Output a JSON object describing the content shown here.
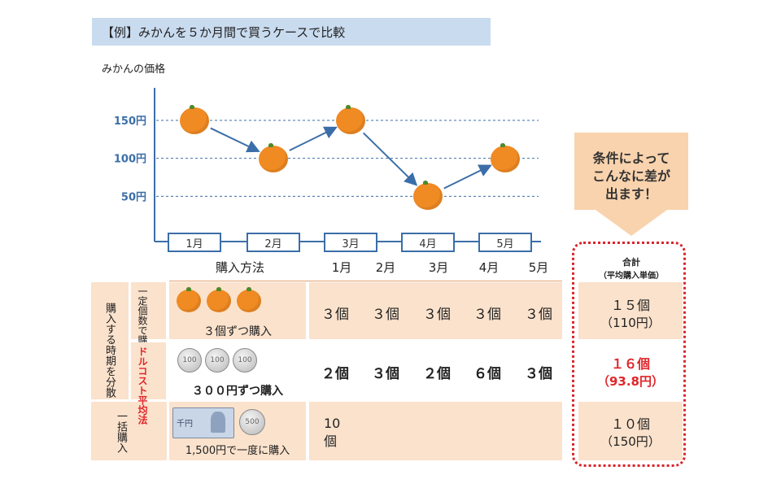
{
  "banner": {
    "title": "【例】みかんを５か月間で買うケースで比較"
  },
  "chart_data": {
    "type": "line",
    "ylabel": "みかんの価格",
    "y_ticks": [
      "150円",
      "100円",
      "50円"
    ],
    "y_tick_values": [
      150,
      100,
      50
    ],
    "categories": [
      "1月",
      "2月",
      "3月",
      "4月",
      "5月"
    ],
    "values": [
      150,
      100,
      150,
      50,
      100
    ],
    "ylim": [
      0,
      160
    ],
    "gridlines": "dashed",
    "markers": "mikan-orange"
  },
  "callout": {
    "lines": [
      "条件によって",
      "こんなに差が",
      "出ます！"
    ]
  },
  "table": {
    "header": {
      "method": "購入方法",
      "months": [
        "1月",
        "2月",
        "3月",
        "4月",
        "5月"
      ],
      "total": "合計",
      "total_sub": "（平均購入単価）"
    },
    "group_label": "購入する時期を分散",
    "rows": [
      {
        "sub_label": "一定個数で購入",
        "method": "３個ずつ購入",
        "values": [
          "３個",
          "３個",
          "３個",
          "３個",
          "３個"
        ],
        "total": "１５個",
        "total_sub": "（110円）",
        "emphasis": false
      },
      {
        "sub_label": "ドルコスト平均法",
        "method": "３００円ずつ購入",
        "values": [
          "２個",
          "３個",
          "２個",
          "６個",
          "３個"
        ],
        "total": "１６個",
        "total_sub": "（93.8円）",
        "emphasis": true
      },
      {
        "sub_label": "一括購入",
        "method": "1,500円で一度に購入",
        "values": [
          "10個",
          "",
          "",
          "",
          ""
        ],
        "total": "１０個",
        "total_sub": "（150円）",
        "emphasis": false
      }
    ],
    "coin_label": "100",
    "bill_label": "千円",
    "coin500_label": "500"
  },
  "colors": {
    "accent_blue": "#3b6ea8",
    "band": "#fbe2cc",
    "callout": "#f9d3ad",
    "emphasis": "#e0262b"
  }
}
